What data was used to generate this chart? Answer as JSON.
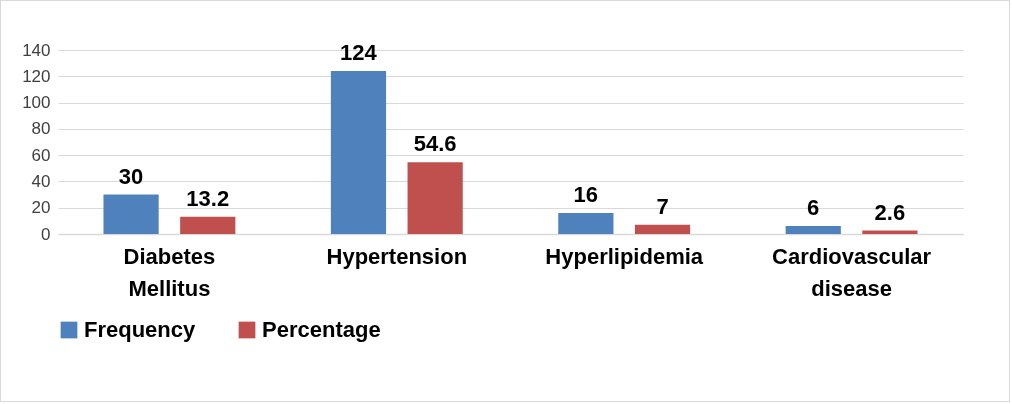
{
  "chart_data": {
    "type": "bar",
    "categories": [
      "Diabetes Mellitus",
      "Hypertension",
      "Hyperlipidemia",
      "Cardiovascular disease"
    ],
    "series": [
      {
        "name": "Frequency",
        "color": "#4f81bd",
        "values": [
          30,
          124,
          16,
          6
        ]
      },
      {
        "name": "Percentage",
        "color": "#c0504d",
        "values": [
          13.2,
          54.6,
          7,
          2.6
        ]
      }
    ],
    "ylim": [
      0,
      140
    ],
    "yticks": [
      0,
      20,
      40,
      60,
      80,
      100,
      120,
      140
    ],
    "grid": "y",
    "legend": "bottom",
    "data_labels": true
  }
}
